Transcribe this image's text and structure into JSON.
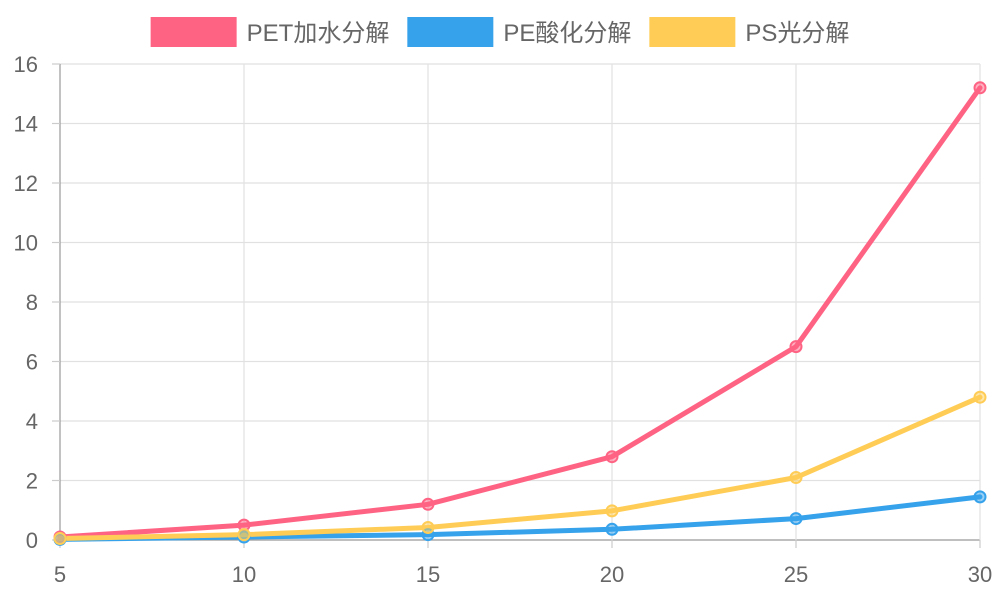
{
  "chart_data": {
    "type": "line",
    "title": "",
    "xlabel": "",
    "ylabel": "",
    "x": [
      5,
      10,
      15,
      20,
      25,
      30
    ],
    "xlim": [
      5,
      30
    ],
    "ylim": [
      0,
      16
    ],
    "xticks": [
      5,
      10,
      15,
      20,
      25,
      30
    ],
    "yticks": [
      0,
      2,
      4,
      6,
      8,
      10,
      12,
      14,
      16
    ],
    "grid": true,
    "legend_position": "top-center",
    "series": [
      {
        "name": "PET加水分解",
        "color": "#ff6384",
        "values": [
          0.1,
          0.5,
          1.2,
          2.8,
          6.5,
          15.2
        ]
      },
      {
        "name": "PE酸化分解",
        "color": "#36a2eb",
        "values": [
          0.02,
          0.1,
          0.18,
          0.36,
          0.72,
          1.45
        ]
      },
      {
        "name": "PS光分解",
        "color": "#ffcd56",
        "values": [
          0.05,
          0.18,
          0.42,
          0.98,
          2.1,
          4.8
        ]
      }
    ]
  }
}
